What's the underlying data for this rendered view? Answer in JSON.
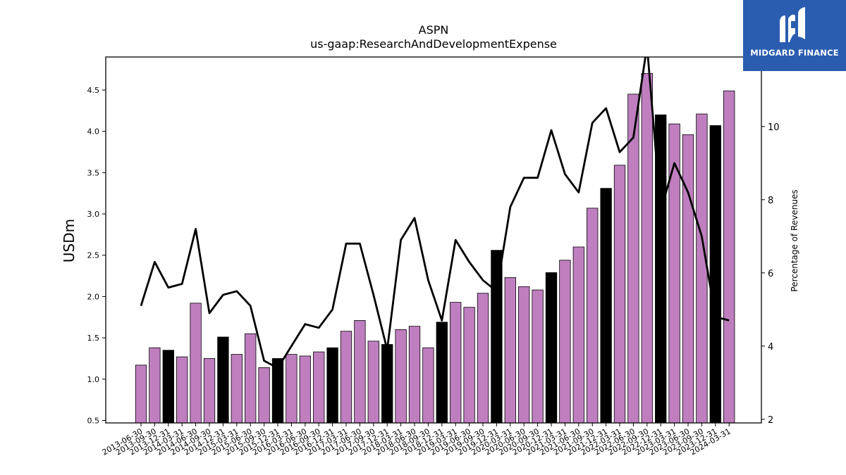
{
  "chart_data": {
    "type": "bar",
    "title": "ASPN",
    "subtitle": "us-gaap:ResearchAndDevelopmentExpense",
    "ylabel": "USDm",
    "y2label": "Percentage of Revenues",
    "ylim": [
      0.47,
      4.9
    ],
    "y2lim": [
      1.9,
      11.9
    ],
    "yticks": [
      "0.5",
      "1.0",
      "1.5",
      "2.0",
      "2.5",
      "3.0",
      "3.5",
      "4.0",
      "4.5"
    ],
    "y2ticks": [
      "2",
      "4",
      "6",
      "8",
      "10"
    ],
    "categories": [
      "2013-06-30",
      "2013-09-30",
      "2013-12-31",
      "2014-03-31",
      "2014-06-30",
      "2014-09-30",
      "2014-12-31",
      "2015-03-31",
      "2015-06-30",
      "2015-09-30",
      "2015-12-31",
      "2016-03-31",
      "2016-06-30",
      "2016-09-30",
      "2016-12-31",
      "2017-03-31",
      "2017-06-30",
      "2017-09-30",
      "2017-12-31",
      "2018-03-31",
      "2018-06-30",
      "2018-09-30",
      "2018-12-31",
      "2019-03-31",
      "2019-06-30",
      "2019-09-30",
      "2019-12-31",
      "2020-03-31",
      "2020-06-30",
      "2020-09-30",
      "2020-12-31",
      "2021-03-31",
      "2021-06-30",
      "2021-09-30",
      "2021-12-31",
      "2022-03-31",
      "2022-06-30",
      "2022-09-30",
      "2022-12-31",
      "2023-03-31",
      "2023-06-30",
      "2023-09-30",
      "2023-12-31",
      "2024-03-31"
    ],
    "series": [
      {
        "kind": "bar",
        "values": [
          1.17,
          1.38,
          1.35,
          1.27,
          1.92,
          1.25,
          1.51,
          1.3,
          1.55,
          1.14,
          1.25,
          1.3,
          1.28,
          1.33,
          1.38,
          1.58,
          1.71,
          1.46,
          1.42,
          1.6,
          1.64,
          1.38,
          1.69,
          1.93,
          1.87,
          2.04,
          2.56,
          2.23,
          2.12,
          2.08,
          2.29,
          2.44,
          2.6,
          3.07,
          3.31,
          3.59,
          4.45,
          4.7,
          4.2,
          4.09,
          3.96,
          4.21,
          4.07,
          4.49
        ],
        "colors": [
          "#bf7fbf",
          "#bf7fbf",
          "#000000",
          "#bf7fbf",
          "#bf7fbf",
          "#bf7fbf",
          "#000000",
          "#bf7fbf",
          "#bf7fbf",
          "#bf7fbf",
          "#000000",
          "#bf7fbf",
          "#bf7fbf",
          "#bf7fbf",
          "#000000",
          "#bf7fbf",
          "#bf7fbf",
          "#bf7fbf",
          "#000000",
          "#bf7fbf",
          "#bf7fbf",
          "#bf7fbf",
          "#000000",
          "#bf7fbf",
          "#bf7fbf",
          "#bf7fbf",
          "#000000",
          "#bf7fbf",
          "#bf7fbf",
          "#bf7fbf",
          "#000000",
          "#bf7fbf",
          "#bf7fbf",
          "#bf7fbf",
          "#000000",
          "#bf7fbf",
          "#bf7fbf",
          "#bf7fbf",
          "#000000",
          "#bf7fbf",
          "#bf7fbf",
          "#bf7fbf",
          "#000000",
          "#bf7fbf"
        ]
      },
      {
        "kind": "line",
        "axis": "right",
        "color": "#000000",
        "values": [
          5.1,
          6.3,
          5.6,
          5.7,
          7.2,
          4.9,
          5.4,
          5.5,
          5.1,
          3.6,
          3.4,
          4.0,
          4.6,
          4.5,
          5.0,
          6.8,
          6.8,
          5.4,
          3.9,
          6.9,
          7.5,
          5.8,
          4.7,
          6.9,
          6.3,
          5.8,
          5.5,
          7.8,
          8.6,
          8.6,
          9.9,
          8.7,
          8.2,
          10.1,
          10.5,
          9.3,
          9.7,
          12.2,
          7.7,
          9.0,
          8.2,
          7.0,
          4.8,
          4.7
        ]
      }
    ],
    "grid": false
  },
  "logo": {
    "text": "MIDGARD FINANCE",
    "background": "#2a5db0"
  }
}
